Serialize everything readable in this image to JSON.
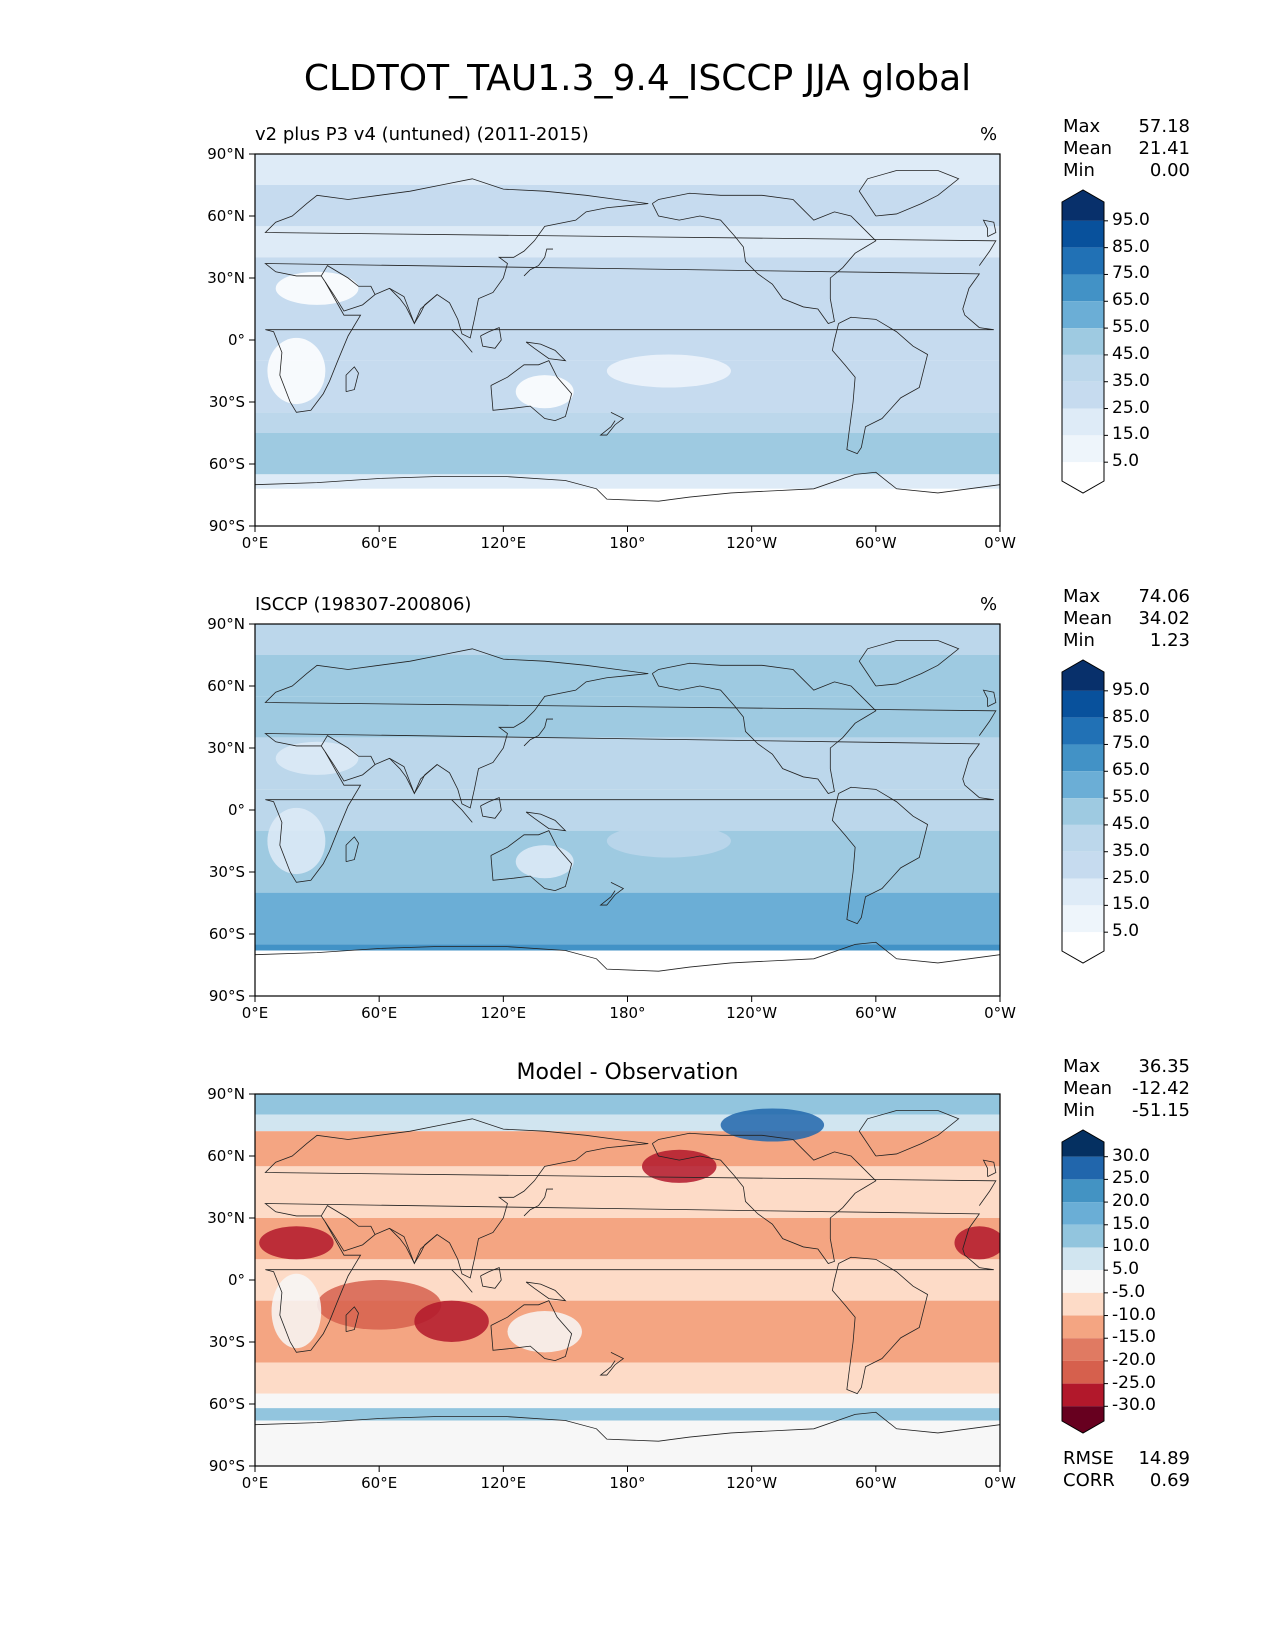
{
  "figure": {
    "title": "CLDTOT_TAU1.3_9.4_ISCCP JJA global"
  },
  "axes": {
    "x_ticks": [
      "0°E",
      "60°E",
      "120°E",
      "180°",
      "120°W",
      "60°W",
      "0°W"
    ],
    "y_ticks": [
      "90°N",
      "60°N",
      "30°N",
      "0°",
      "30°S",
      "60°S",
      "90°S"
    ]
  },
  "panels": [
    {
      "title_left": "v2 plus P3 v4 (untuned) (2011-2015)",
      "title_center": "",
      "unit": "%",
      "stats": [
        {
          "label": "Max",
          "value": "57.18"
        },
        {
          "label": "Mean",
          "value": "21.41"
        },
        {
          "label": "Min",
          "value": "0.00"
        }
      ],
      "colorbar_labels": [
        "95.0",
        "85.0",
        "75.0",
        "65.0",
        "55.0",
        "45.0",
        "35.0",
        "25.0",
        "15.0",
        "5.0"
      ],
      "colorbar_colors": [
        "#08306b",
        "#08519c",
        "#2171b5",
        "#4292c6",
        "#6baed6",
        "#9ecae1",
        "#bcd7eb",
        "#c6dbef",
        "#deebf7",
        "#eef5fb",
        "#ffffff"
      ]
    },
    {
      "title_left": "ISCCP (198307-200806)",
      "title_center": "",
      "unit": "%",
      "stats": [
        {
          "label": "Max",
          "value": "74.06"
        },
        {
          "label": "Mean",
          "value": "34.02"
        },
        {
          "label": "Min",
          "value": "1.23"
        }
      ],
      "colorbar_labels": [
        "95.0",
        "85.0",
        "75.0",
        "65.0",
        "55.0",
        "45.0",
        "35.0",
        "25.0",
        "15.0",
        "5.0"
      ],
      "colorbar_colors": [
        "#08306b",
        "#08519c",
        "#2171b5",
        "#4292c6",
        "#6baed6",
        "#9ecae1",
        "#bcd7eb",
        "#c6dbef",
        "#deebf7",
        "#eef5fb",
        "#ffffff"
      ]
    },
    {
      "title_left": "",
      "title_center": "Model - Observation",
      "unit": "",
      "stats": [
        {
          "label": "Max",
          "value": "36.35"
        },
        {
          "label": "Mean",
          "value": "-12.42"
        },
        {
          "label": "Min",
          "value": "-51.15"
        }
      ],
      "colorbar_labels": [
        "30.0",
        "25.0",
        "20.0",
        "15.0",
        "10.0",
        "5.0",
        "-5.0",
        "-10.0",
        "-15.0",
        "-20.0",
        "-25.0",
        "-30.0"
      ],
      "colorbar_colors": [
        "#053061",
        "#2166ac",
        "#4393c3",
        "#6aaed6",
        "#92c5de",
        "#d1e5f0",
        "#f7f7f7",
        "#fddbc7",
        "#f4a582",
        "#e07a62",
        "#d6604d",
        "#b2182b",
        "#67001f"
      ],
      "metrics": [
        {
          "label": "RMSE",
          "value": "14.89"
        },
        {
          "label": "CORR",
          "value": "0.69"
        }
      ]
    }
  ]
}
